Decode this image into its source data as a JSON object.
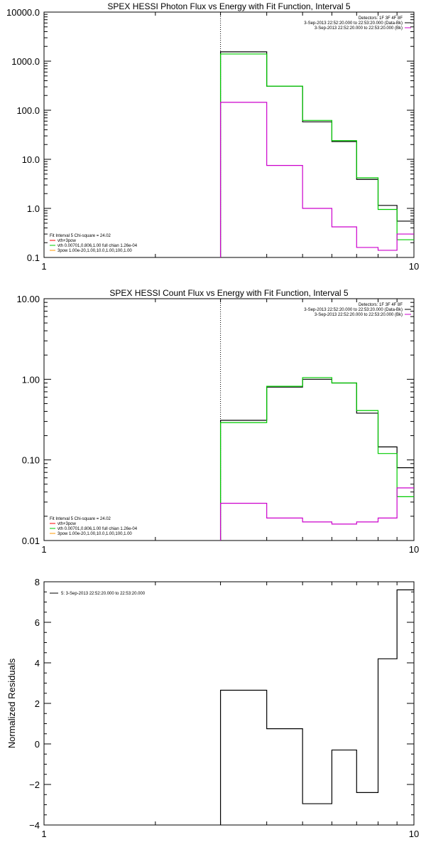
{
  "chart_data": [
    {
      "type": "line",
      "title": "SPEX HESSI Photon Flux vs Energy with Fit Function, Interval 5",
      "xscale": "log",
      "yscale": "log",
      "xlim": [
        1,
        10
      ],
      "ylim": [
        0.1,
        10000
      ],
      "x_ticks": [
        {
          "v": 1,
          "label": "1"
        },
        {
          "v": 10,
          "label": "10"
        }
      ],
      "y_ticks": [
        {
          "v": 0.1,
          "label": "0.1"
        },
        {
          "v": 1,
          "label": "1.0"
        },
        {
          "v": 10,
          "label": "10.0"
        },
        {
          "v": 100,
          "label": "100.0"
        },
        {
          "v": 1000,
          "label": "1000.0"
        },
        {
          "v": 10000,
          "label": "10000.0"
        }
      ],
      "vline_x": 3,
      "legend_tr": [
        {
          "text": "Detectors: 1F 3F 4F 8F",
          "color": "#000000"
        },
        {
          "text": "3-Sep-2013 22:52:20.000 to 22:53:20.000 (Data-Bk)",
          "color": "#000000"
        },
        {
          "text": "3-Sep-2013 22:52:20.000 to 22:53:20.000 (Bk)",
          "color": "#cc00cc"
        }
      ],
      "legend_bl": [
        {
          "text": "Fit Interval 5   Chi-square = 24.02",
          "color": "#000000"
        },
        {
          "text": "vth+3pow",
          "color": "#ff0000"
        },
        {
          "text": "vth 0.00701,0.806,1.00  full chian 1.26e-04",
          "color": "#00cc00"
        },
        {
          "text": "3pow 1.00e-20,1.00,10.0,1.00,100,1.00",
          "color": "#ff9900"
        }
      ],
      "edges": [
        3,
        4,
        5,
        6,
        7,
        8,
        9,
        10
      ],
      "series": [
        {
          "color": "#000000",
          "values": [
            1550,
            310,
            58,
            23,
            3.9,
            1.15,
            0.55
          ]
        },
        {
          "color": "#00cc00",
          "values": [
            1400,
            310,
            62,
            24,
            4.2,
            0.95,
            0.23
          ]
        },
        {
          "color": "#cc00cc",
          "values": [
            145,
            7.5,
            1.0,
            0.42,
            0.16,
            0.14,
            0.3
          ]
        }
      ]
    },
    {
      "type": "line",
      "title": "SPEX HESSI Count Flux vs Energy with Fit Function, Interval 5",
      "xscale": "log",
      "yscale": "log",
      "xlim": [
        1,
        10
      ],
      "ylim": [
        0.01,
        10
      ],
      "x_ticks": [
        {
          "v": 1,
          "label": "1"
        },
        {
          "v": 10,
          "label": "10"
        }
      ],
      "y_ticks": [
        {
          "v": 0.01,
          "label": "0.01"
        },
        {
          "v": 0.1,
          "label": "0.10"
        },
        {
          "v": 1,
          "label": "1.00"
        },
        {
          "v": 10,
          "label": "10.00"
        }
      ],
      "vline_x": 3,
      "legend_tr": [
        {
          "text": "Detectors: 1F 3F 4F 8F",
          "color": "#000000"
        },
        {
          "text": "3-Sep-2013 22:52:20.000 to 22:53:20.000 (Data-Bk)",
          "color": "#000000"
        },
        {
          "text": "3-Sep-2013 22:52:20.000 to 22:53:20.000 (Bk)",
          "color": "#cc00cc"
        }
      ],
      "legend_bl": [
        {
          "text": "Fit Interval 5   Chi-square = 24.02",
          "color": "#000000"
        },
        {
          "text": "vth+3pow",
          "color": "#ff0000"
        },
        {
          "text": "vth 0.00701,0.806,1.00  full chian 1.26e-04",
          "color": "#00cc00"
        },
        {
          "text": "3pow 1.00e-20,1.00,10.0,1.00,100,1.00",
          "color": "#ff9900"
        }
      ],
      "edges": [
        3,
        4,
        5,
        6,
        7,
        8,
        9,
        10
      ],
      "series": [
        {
          "color": "#000000",
          "values": [
            0.31,
            0.8,
            1.0,
            0.9,
            0.38,
            0.145,
            0.08
          ]
        },
        {
          "color": "#00cc00",
          "values": [
            0.29,
            0.82,
            1.05,
            0.9,
            0.41,
            0.12,
            0.035
          ]
        },
        {
          "color": "#cc00cc",
          "values": [
            0.029,
            0.019,
            0.017,
            0.016,
            0.017,
            0.019,
            0.045
          ]
        }
      ]
    },
    {
      "type": "line",
      "title": "",
      "xscale": "log",
      "yscale": "linear",
      "xlim": [
        1,
        10
      ],
      "ylim": [
        -4,
        8
      ],
      "ylabel": "Normalized Residuals",
      "x_ticks": [
        {
          "v": 1,
          "label": "1"
        },
        {
          "v": 10,
          "label": "10"
        }
      ],
      "y_ticks": [
        {
          "v": -4,
          "label": "−4"
        },
        {
          "v": -2,
          "label": "−2"
        },
        {
          "v": 0,
          "label": "0"
        },
        {
          "v": 2,
          "label": "2"
        },
        {
          "v": 4,
          "label": "4"
        },
        {
          "v": 6,
          "label": "6"
        },
        {
          "v": 8,
          "label": "8"
        }
      ],
      "legend_tl": [
        {
          "text": "5: 3-Sep-2013 22:52:20.000 to 22:53:20.000",
          "color": "#000000"
        }
      ],
      "edges": [
        3,
        4,
        5,
        6,
        7,
        8,
        9,
        10
      ],
      "series": [
        {
          "color": "#000000",
          "values": [
            2.65,
            0.75,
            -2.95,
            -0.3,
            -2.4,
            4.2,
            7.6
          ]
        }
      ]
    }
  ]
}
